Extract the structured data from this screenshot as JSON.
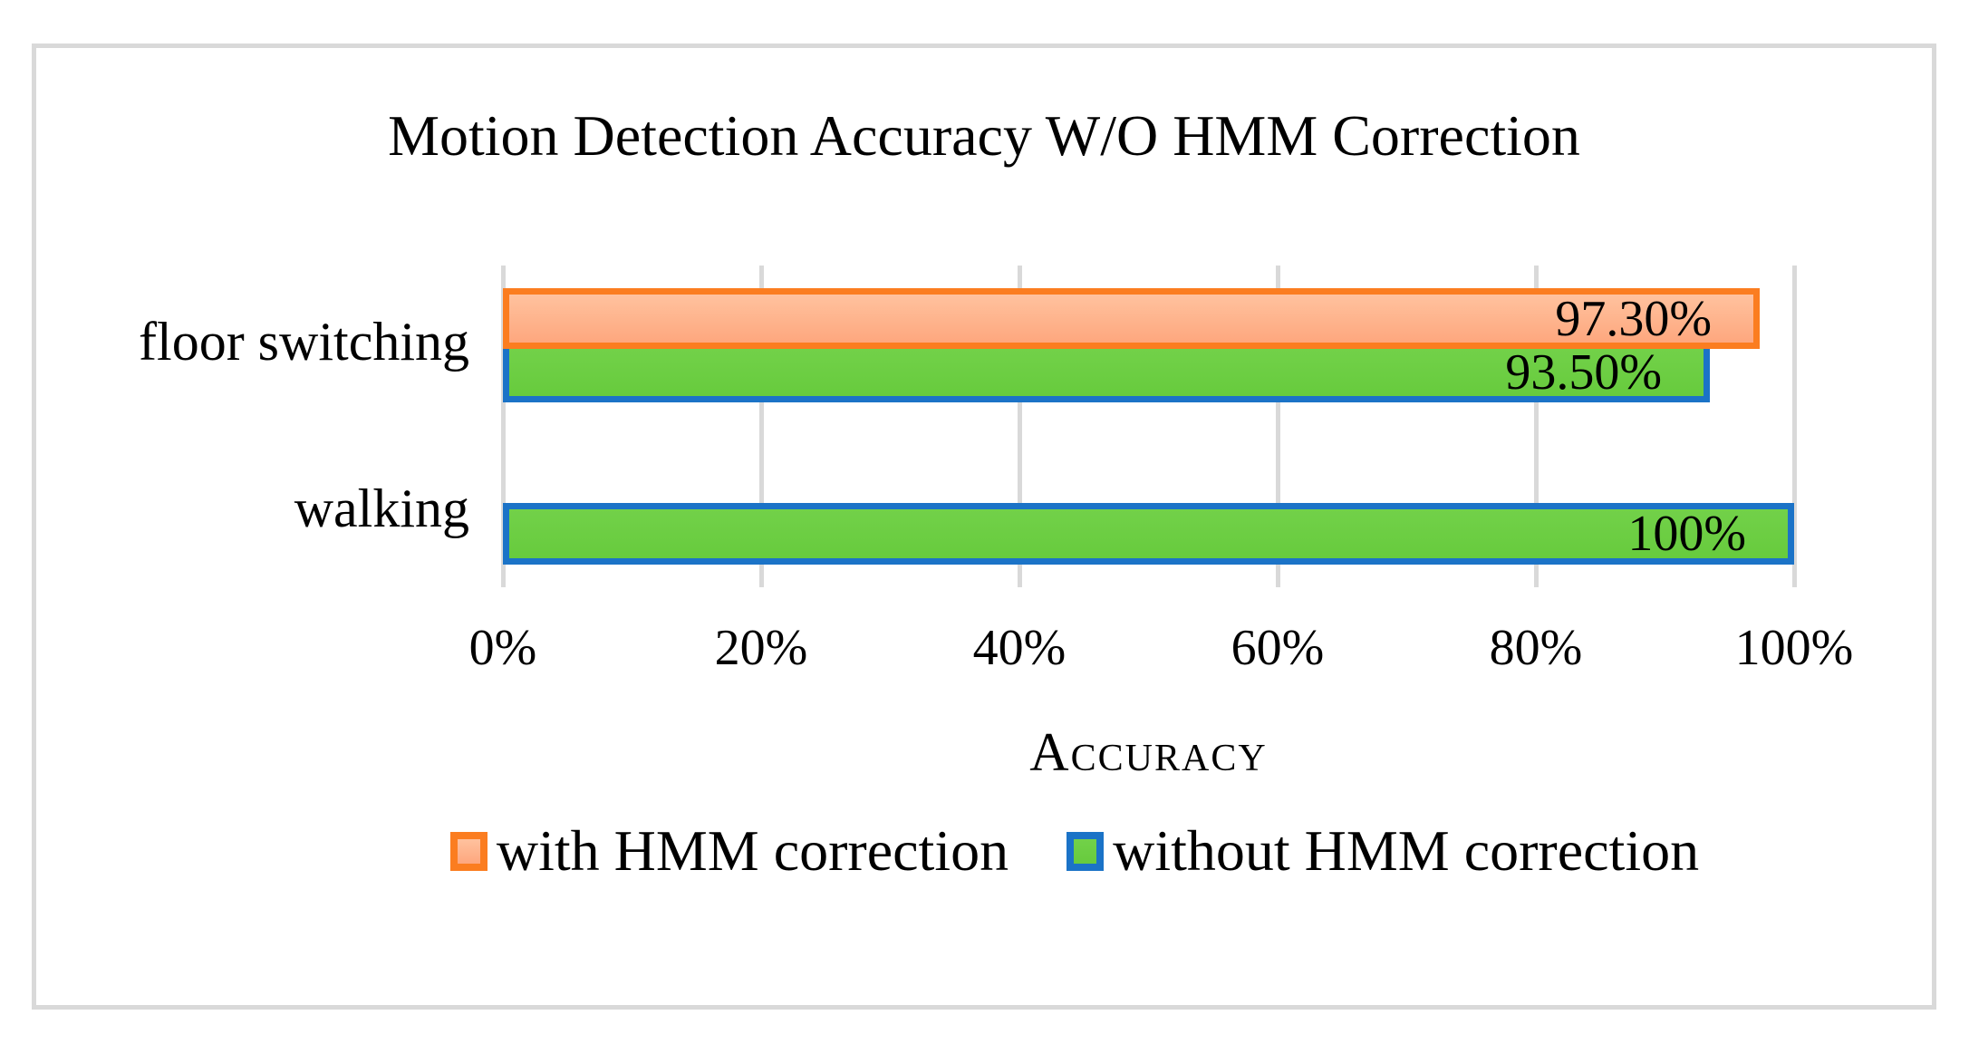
{
  "chart_data": {
    "type": "bar",
    "orientation": "horizontal",
    "title": "Motion Detection Accuracy W/O HMM Correction",
    "xlabel": "Accuracy",
    "categories": [
      "floor switching",
      "walking"
    ],
    "series": [
      {
        "name": "with HMM correction",
        "values": [
          97.3,
          null
        ],
        "data_labels": [
          "97.30%",
          null
        ],
        "fill_top": "#FFC29E",
        "fill_bottom": "#FEA77E",
        "border_color": "#FB7D20"
      },
      {
        "name": "without HMM correction",
        "values": [
          93.5,
          100
        ],
        "data_labels": [
          "93.50%",
          "100%"
        ],
        "fill_top": "#72D149",
        "fill_bottom": "#67CB3D",
        "border_color": "#1B73C7"
      }
    ],
    "x_axis": {
      "min": 0,
      "max": 100,
      "tick_labels": [
        "0%",
        "20%",
        "40%",
        "60%",
        "80%",
        "100%"
      ]
    },
    "gridlines": true,
    "gridline_color": "#D9D9D9",
    "frame_border_color": "#D9D9D9",
    "text_color": "#000000",
    "legend_position": "bottom"
  }
}
